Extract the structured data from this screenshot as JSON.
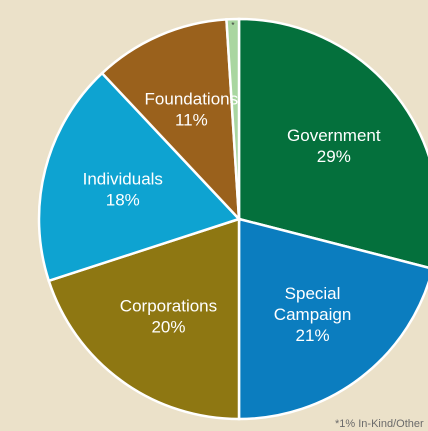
{
  "chart_data": {
    "type": "pie",
    "title": "",
    "slices": [
      {
        "label": [
          "Government"
        ],
        "value_text": "29%",
        "value": 29,
        "color": "#04703c"
      },
      {
        "label": [
          "Special",
          "Campaign"
        ],
        "value_text": "21%",
        "value": 21,
        "color": "#0b7dbf"
      },
      {
        "label": [
          "Corporations"
        ],
        "value_text": "20%",
        "value": 20,
        "color": "#8e7712"
      },
      {
        "label": [
          "Individuals"
        ],
        "value_text": "18%",
        "value": 18,
        "color": "#0ea3d1"
      },
      {
        "label": [
          "Foundations"
        ],
        "value_text": "11%",
        "value": 11,
        "color": "#9a611c"
      },
      {
        "label": [],
        "value_text": "",
        "marker": "*",
        "value": 1,
        "color": "#a9d6a0"
      }
    ],
    "footnote": "*1% In-Kind/Other"
  }
}
